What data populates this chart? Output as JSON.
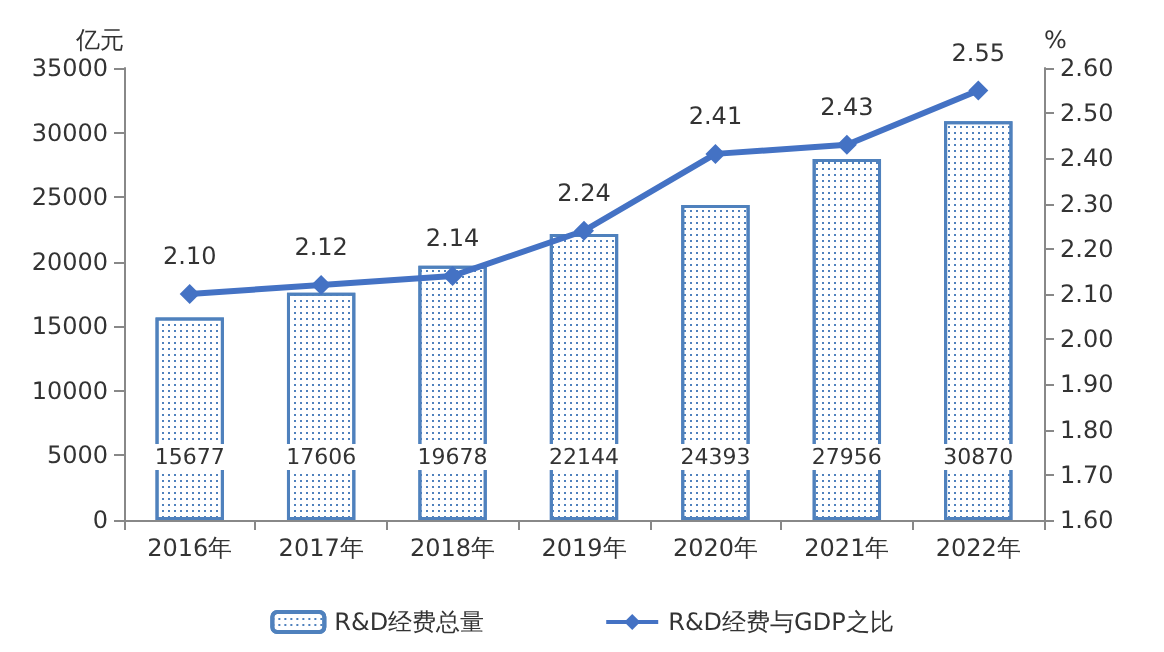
{
  "chart_data": {
    "type": "bar",
    "ylabel": "亿元",
    "y2label": "%",
    "categories": [
      "2016年",
      "2017年",
      "2018年",
      "2019年",
      "2020年",
      "2021年",
      "2022年"
    ],
    "series": [
      {
        "name": "R&D经费总量",
        "color": "#4f81bd",
        "values": [
          15677,
          17606,
          19678,
          22144,
          24393,
          27956,
          30870
        ]
      },
      {
        "name": "R&D经费与GDP之比",
        "type": "line",
        "axis": "y2",
        "color": "#4472c4",
        "marker": "diamond",
        "line_style": "solid",
        "values": [
          2.1,
          2.12,
          2.14,
          2.24,
          2.41,
          2.43,
          2.55
        ],
        "value_labels": [
          "2.10",
          "2.12",
          "2.14",
          "2.24",
          "2.41",
          "2.43",
          "2.55"
        ]
      }
    ],
    "data_labels": true,
    "ylim": [
      0,
      35000
    ],
    "yticks": [
      0,
      5000,
      10000,
      15000,
      20000,
      25000,
      30000,
      35000
    ],
    "y2lim": [
      1.6,
      2.6
    ],
    "y2ticks": [
      {
        "value": 1.6,
        "label": "1.60"
      },
      {
        "value": 1.7,
        "label": "1.70"
      },
      {
        "value": 1.8,
        "label": "1.80"
      },
      {
        "value": 1.9,
        "label": "1.90"
      },
      {
        "value": 2.0,
        "label": "2.00"
      },
      {
        "value": 2.1,
        "label": "2.10"
      },
      {
        "value": 2.2,
        "label": "2.20"
      },
      {
        "value": 2.3,
        "label": "2.30"
      },
      {
        "value": 2.4,
        "label": "2.40"
      },
      {
        "value": 2.5,
        "label": "2.50"
      },
      {
        "value": 2.6,
        "label": "2.60"
      }
    ],
    "legend": "bottom"
  }
}
